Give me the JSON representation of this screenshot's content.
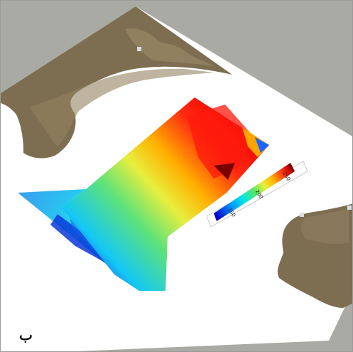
{
  "figure": {
    "panel_label": "ب"
  },
  "colors": {
    "outer_background": "#a9aaa3",
    "plate": "#ffffff",
    "terrain": "#7d6e52",
    "colormap": [
      "#0000c8",
      "#0096ff",
      "#00e6e6",
      "#5ae664",
      "#e6f03c",
      "#ffb400",
      "#ff3c14",
      "#c80000",
      "#5a0000"
    ]
  },
  "legend": {
    "ticks": [
      "150",
      "200",
      "250"
    ],
    "tick_values": [
      150,
      200,
      250
    ],
    "range": [
      130,
      270
    ]
  }
}
